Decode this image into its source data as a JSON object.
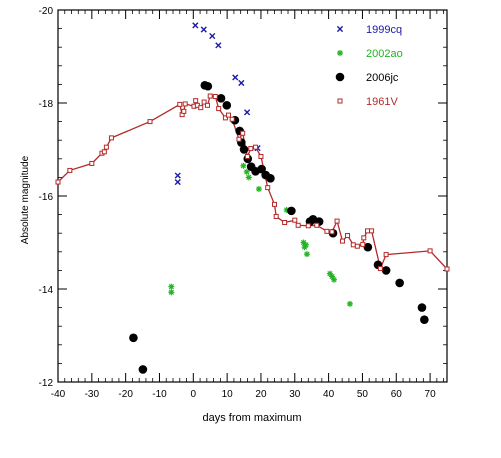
{
  "chart_data": {
    "type": "scatter",
    "xlabel": "days from maximum",
    "ylabel": "Absolute magnitude",
    "xlim": [
      -40,
      75
    ],
    "ylim": [
      -12,
      -20
    ],
    "y_inverted": true,
    "x_ticks": [
      -40,
      -30,
      -20,
      -10,
      0,
      10,
      20,
      30,
      40,
      50,
      60,
      70
    ],
    "y_ticks": [
      -20,
      -18,
      -16,
      -14,
      -12
    ],
    "legend_position": "top-right",
    "series": [
      {
        "name": "1999cq",
        "marker": "x",
        "color": "#1a1aa8",
        "points": [
          [
            -4.6,
            -16.44
          ],
          [
            -4.6,
            -16.3
          ],
          [
            0.6,
            -19.67
          ],
          [
            3.1,
            -19.58
          ],
          [
            5.6,
            -19.44
          ],
          [
            7.4,
            -19.24
          ],
          [
            12.4,
            -18.55
          ],
          [
            14.2,
            -18.43
          ],
          [
            15.9,
            -17.8
          ],
          [
            19.0,
            -17.03
          ]
        ]
      },
      {
        "name": "2002ao",
        "marker": "asterisk",
        "color": "#22b422",
        "points": [
          [
            -6.5,
            -13.93
          ],
          [
            -6.5,
            -14.05
          ],
          [
            14.8,
            -16.65
          ],
          [
            15.8,
            -16.52
          ],
          [
            16.4,
            -16.4
          ],
          [
            19.4,
            -16.15
          ],
          [
            27.6,
            -15.7
          ],
          [
            32.6,
            -15.0
          ],
          [
            32.9,
            -14.9
          ],
          [
            33.3,
            -14.95
          ],
          [
            33.6,
            -14.75
          ],
          [
            40.4,
            -14.33
          ],
          [
            41.0,
            -14.27
          ],
          [
            41.6,
            -14.2
          ],
          [
            46.3,
            -13.68
          ]
        ]
      },
      {
        "name": "2006jc",
        "marker": "circle",
        "color": "#000000",
        "points": [
          [
            -17.7,
            -12.95
          ],
          [
            -14.9,
            -12.27
          ],
          [
            3.4,
            -18.38
          ],
          [
            4.3,
            -18.36
          ],
          [
            8.2,
            -18.1
          ],
          [
            9.9,
            -17.95
          ],
          [
            12.3,
            -17.63
          ],
          [
            13.7,
            -17.4
          ],
          [
            14.2,
            -17.15
          ],
          [
            15.0,
            -17.0
          ],
          [
            16.1,
            -16.8
          ],
          [
            17.1,
            -16.63
          ],
          [
            18.4,
            -16.53
          ],
          [
            20.2,
            -16.58
          ],
          [
            21.4,
            -16.45
          ],
          [
            22.8,
            -16.38
          ],
          [
            29.0,
            -15.68
          ],
          [
            34.5,
            -15.45
          ],
          [
            35.4,
            -15.5
          ],
          [
            37.2,
            -15.45
          ],
          [
            41.3,
            -15.2
          ],
          [
            51.6,
            -14.9
          ],
          [
            54.6,
            -14.52
          ],
          [
            57.0,
            -14.4
          ],
          [
            61.0,
            -14.13
          ],
          [
            67.6,
            -13.6
          ],
          [
            68.3,
            -13.34
          ]
        ]
      },
      {
        "name": "1961V",
        "marker": "square",
        "color": "#b52a2a",
        "line": true,
        "points": [
          [
            -40.0,
            -16.3
          ],
          [
            -36.5,
            -16.55
          ],
          [
            -30.0,
            -16.7
          ],
          [
            -27.0,
            -16.92
          ],
          [
            -26.3,
            -16.95
          ],
          [
            -25.7,
            -17.05
          ],
          [
            -24.2,
            -17.25
          ],
          [
            -12.8,
            -17.6
          ],
          [
            -4.0,
            -17.97
          ],
          [
            -3.3,
            -17.75
          ],
          [
            -2.8,
            -17.82
          ],
          [
            -2.4,
            -17.98
          ],
          [
            0.2,
            -17.93
          ],
          [
            0.7,
            -18.05
          ],
          [
            1.2,
            -17.95
          ],
          [
            2.2,
            -17.9
          ],
          [
            3.2,
            -18.02
          ],
          [
            4.2,
            -17.95
          ],
          [
            5.0,
            -18.15
          ],
          [
            6.5,
            -18.14
          ],
          [
            7.5,
            -17.88
          ],
          [
            9.5,
            -17.68
          ],
          [
            10.4,
            -17.74
          ],
          [
            11.5,
            -17.65
          ],
          [
            13.5,
            -17.22
          ],
          [
            14.6,
            -17.35
          ],
          [
            16.0,
            -16.85
          ],
          [
            17.0,
            -17.02
          ],
          [
            18.4,
            -17.05
          ],
          [
            20.0,
            -16.85
          ],
          [
            22.0,
            -16.18
          ],
          [
            24.0,
            -15.82
          ],
          [
            24.5,
            -15.56
          ],
          [
            27.0,
            -15.43
          ],
          [
            30.0,
            -15.48
          ],
          [
            31.0,
            -15.37
          ],
          [
            34.0,
            -15.36
          ],
          [
            36.5,
            -15.37
          ],
          [
            39.5,
            -15.24
          ],
          [
            41.0,
            -15.23
          ],
          [
            42.5,
            -15.46
          ],
          [
            44.1,
            -15.03
          ],
          [
            45.6,
            -15.15
          ],
          [
            47.3,
            -14.95
          ],
          [
            48.5,
            -14.92
          ],
          [
            50.1,
            -14.96
          ],
          [
            50.4,
            -15.1
          ],
          [
            51.5,
            -15.25
          ],
          [
            52.7,
            -15.25
          ],
          [
            55.3,
            -14.44
          ],
          [
            57.0,
            -14.74
          ],
          [
            70.0,
            -14.82
          ],
          [
            75.0,
            -14.43
          ]
        ]
      }
    ]
  }
}
